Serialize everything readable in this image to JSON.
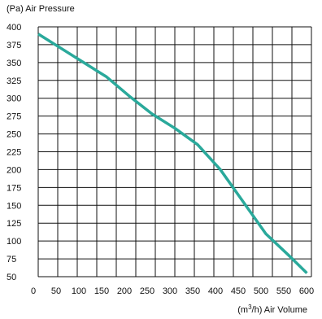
{
  "chart_data": {
    "type": "line",
    "ylabel": "(Pa) Air Pressure",
    "xlabel_prefix": "(m",
    "xlabel_sup": "3",
    "xlabel_suffix": "/h) Air Volume",
    "xlim": [
      0,
      600
    ],
    "ylim": [
      50,
      400
    ],
    "x_ticks": [
      0,
      50,
      100,
      150,
      200,
      250,
      300,
      350,
      400,
      450,
      500,
      550,
      600
    ],
    "x_tick_labels": [
      "0",
      "50",
      "100",
      "150",
      "200",
      "250",
      "300",
      "350",
      "400",
      "450",
      "500",
      "550",
      "600"
    ],
    "y_ticks": [
      50,
      75,
      100,
      125,
      150,
      175,
      200,
      225,
      250,
      275,
      300,
      325,
      350,
      375,
      400
    ],
    "y_tick_labels": [
      "50",
      "75",
      "100",
      "125",
      "150",
      "175",
      "200",
      "225",
      "250",
      "275",
      "300",
      "325",
      "350",
      "375",
      "400"
    ],
    "grid": true,
    "line_color": "#2aa99b",
    "series": [
      {
        "x": [
          0,
          50,
          100,
          150,
          200,
          250,
          300,
          350,
          400,
          450,
          500,
          550,
          590
        ],
        "y": [
          390,
          370,
          350,
          330,
          303,
          278,
          258,
          235,
          200,
          155,
          110,
          80,
          55
        ]
      }
    ]
  }
}
